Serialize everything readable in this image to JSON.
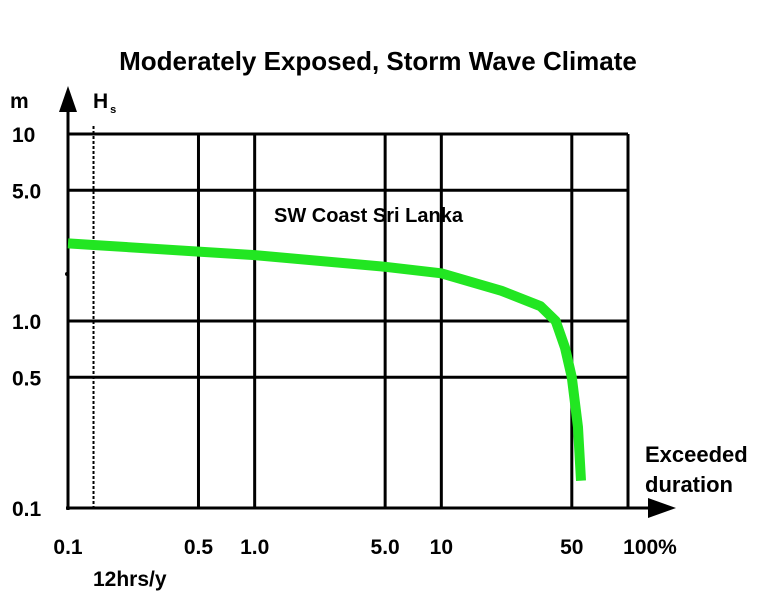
{
  "chart_data": {
    "type": "line",
    "title": "Moderately Exposed, Storm Wave Climate",
    "annotation": "SW Coast Sri Lanka",
    "ylabel_unit": "m",
    "ylabel": "H",
    "ylabel_sub": "s",
    "xlabel_line1": "Exceeded",
    "xlabel_line2": "duration",
    "xscale": "log",
    "yscale": "log",
    "xlim": [
      0.1,
      100
    ],
    "ylim": [
      0.1,
      10
    ],
    "xticks": [
      0.1,
      0.5,
      1.0,
      5.0,
      10,
      50,
      100
    ],
    "xtick_labels": [
      "0.1",
      "0.5",
      "1.0",
      "5.0",
      "10",
      "50",
      "100%"
    ],
    "yticks": [
      0.1,
      0.5,
      1.0,
      5.0,
      10
    ],
    "ytick_labels": [
      "0.1",
      "0.5",
      "1.0",
      "5.0",
      "10"
    ],
    "grid": true,
    "reference_line": {
      "x": 0.137,
      "label": "12hrs/y",
      "style": "dashed"
    },
    "series": [
      {
        "name": "SW Coast Sri Lanka",
        "color": "#22e622",
        "x": [
          0.1,
          0.137,
          0.5,
          1.0,
          5.0,
          10,
          21,
          34,
          41,
          46,
          50,
          54,
          56
        ],
        "y": [
          2.6,
          2.55,
          2.35,
          2.25,
          1.95,
          1.8,
          1.45,
          1.2,
          1.0,
          0.72,
          0.5,
          0.27,
          0.14
        ]
      }
    ]
  }
}
